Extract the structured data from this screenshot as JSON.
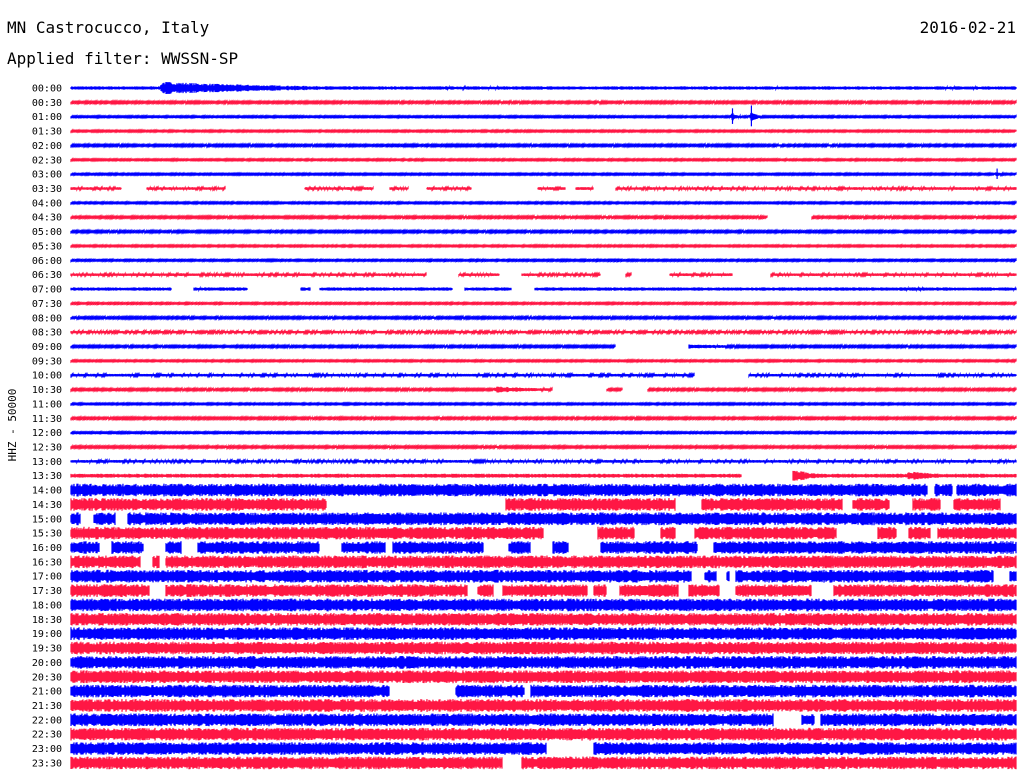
{
  "header": {
    "station": "MN Castrocucco, Italy",
    "date": "2016-02-21",
    "filter": "Applied filter: WWSSN-SP"
  },
  "colors": {
    "even_trace": "#0000ff",
    "odd_trace": "#ff1744",
    "background": "#ffffff"
  },
  "chart_data": {
    "type": "helicorder",
    "ylabel": "HHZ - 50000",
    "row_labels": [
      "00:00",
      "00:30",
      "01:00",
      "01:30",
      "02:00",
      "02:30",
      "03:00",
      "03:30",
      "04:00",
      "04:30",
      "05:00",
      "05:30",
      "06:00",
      "06:30",
      "07:00",
      "07:30",
      "08:00",
      "08:30",
      "09:00",
      "09:30",
      "10:00",
      "10:30",
      "11:00",
      "11:30",
      "12:00",
      "12:30",
      "13:00",
      "13:30",
      "14:00",
      "14:30",
      "15:00",
      "15:30",
      "16:00",
      "16:30",
      "17:00",
      "17:30",
      "18:00",
      "18:30",
      "19:00",
      "19:30",
      "20:00",
      "20:30",
      "21:00",
      "21:30",
      "22:00",
      "22:30",
      "23:00",
      "23:30"
    ],
    "row_minutes": 30,
    "amplitude_level": [
      0.25,
      0.15,
      0.12,
      0.12,
      0.15,
      0.12,
      0.12,
      0.2,
      0.12,
      0.15,
      0.15,
      0.12,
      0.12,
      0.2,
      0.25,
      0.12,
      0.15,
      0.18,
      0.15,
      0.12,
      0.2,
      0.15,
      0.12,
      0.15,
      0.12,
      0.15,
      0.2,
      0.3,
      1,
      1,
      1,
      1,
      1,
      1,
      1,
      1,
      1,
      1,
      1,
      1,
      1,
      1,
      1,
      1,
      1,
      1,
      1,
      1
    ],
    "gaps_minutes": {
      "03:30": [
        [
          1.6,
          2.4
        ],
        [
          4.9,
          7.4
        ],
        [
          9.6,
          10.1
        ],
        [
          10.7,
          11.3
        ],
        [
          12.7,
          14.8
        ],
        [
          15.7,
          16.0
        ],
        [
          16.6,
          17.3
        ]
      ],
      "04:30": [
        [
          22.1,
          23.5
        ]
      ],
      "06:30": [
        [
          11.3,
          12.3
        ],
        [
          13.6,
          14.3
        ],
        [
          16.8,
          17.6
        ],
        [
          17.8,
          19.0
        ],
        [
          21.0,
          22.2
        ]
      ],
      "07:00": [
        [
          3.2,
          3.9
        ],
        [
          5.6,
          7.3
        ],
        [
          7.6,
          7.9
        ],
        [
          12.1,
          12.5
        ],
        [
          14.0,
          14.7
        ]
      ],
      "09:00": [
        [
          17.3,
          19.6
        ]
      ],
      "10:00": [
        [
          19.8,
          21.5
        ]
      ],
      "10:30": [
        [
          15.3,
          17.0
        ],
        [
          17.5,
          18.3
        ]
      ],
      "13:30": [
        [
          21.3,
          22.9
        ]
      ],
      "14:00": [
        [
          27.2,
          27.4
        ],
        [
          28.0,
          28.1
        ]
      ],
      "14:30": [
        [
          8.1,
          13.8
        ],
        [
          19.2,
          20.0
        ],
        [
          24.5,
          24.8
        ],
        [
          26.0,
          26.7
        ],
        [
          27.6,
          28.0
        ],
        [
          29.5,
          30
        ]
      ],
      "15:00": [
        [
          0.3,
          0.7
        ],
        [
          1.4,
          1.8
        ]
      ],
      "15:30": [
        [
          15.0,
          16.7
        ],
        [
          17.9,
          18.7
        ],
        [
          19.2,
          19.8
        ],
        [
          24.3,
          25.6
        ],
        [
          26.2,
          26.6
        ],
        [
          27.3,
          27.5
        ]
      ],
      "16:00": [
        [
          0.9,
          1.3
        ],
        [
          2.3,
          3.0
        ],
        [
          3.5,
          4.0
        ],
        [
          7.9,
          8.6
        ],
        [
          10.0,
          10.2
        ],
        [
          13.1,
          13.9
        ],
        [
          14.6,
          15.3
        ],
        [
          15.8,
          16.8
        ],
        [
          19.9,
          20.4
        ]
      ],
      "16:30": [
        [
          2.2,
          2.6
        ],
        [
          2.8,
          3.0
        ]
      ],
      "17:00": [
        [
          19.7,
          20.1
        ],
        [
          20.5,
          20.8
        ],
        [
          20.9,
          21.1
        ],
        [
          29.3,
          29.8
        ]
      ],
      "17:30": [
        [
          2.5,
          3.0
        ],
        [
          12.6,
          12.9
        ],
        [
          13.4,
          13.7
        ],
        [
          16.4,
          16.6
        ],
        [
          17.0,
          17.4
        ],
        [
          19.3,
          19.6
        ],
        [
          20.6,
          21.1
        ],
        [
          23.5,
          24.2
        ]
      ],
      "21:00": [
        [
          10.1,
          12.2
        ],
        [
          14.4,
          14.6
        ]
      ],
      "22:00": [
        [
          22.3,
          23.2
        ],
        [
          23.6,
          23.8
        ]
      ],
      "23:00": [
        [
          15.1,
          16.6
        ]
      ],
      "23:30": [
        [
          13.7,
          14.3
        ]
      ]
    },
    "events": [
      {
        "row": "00:00",
        "minute": 2.9,
        "peak": 1.0,
        "decay_minutes": 4.0
      },
      {
        "row": "01:00",
        "minute": 21.6,
        "peak": 0.8,
        "decay_minutes": 0.2
      },
      {
        "row": "01:00",
        "minute": 21.0,
        "peak": 0.6,
        "decay_minutes": 0.2
      },
      {
        "row": "03:00",
        "minute": 29.4,
        "peak": 0.4,
        "decay_minutes": 0.2
      },
      {
        "row": "09:00",
        "minute": 19.6,
        "peak": 0.35,
        "decay_minutes": 2.0
      },
      {
        "row": "10:30",
        "minute": 13.5,
        "peak": 0.5,
        "decay_minutes": 1.6
      },
      {
        "row": "13:30",
        "minute": 22.9,
        "peak": 1.0,
        "decay_minutes": 0.8
      },
      {
        "row": "13:30",
        "minute": 26.6,
        "peak": 0.7,
        "decay_minutes": 1.2
      }
    ]
  }
}
